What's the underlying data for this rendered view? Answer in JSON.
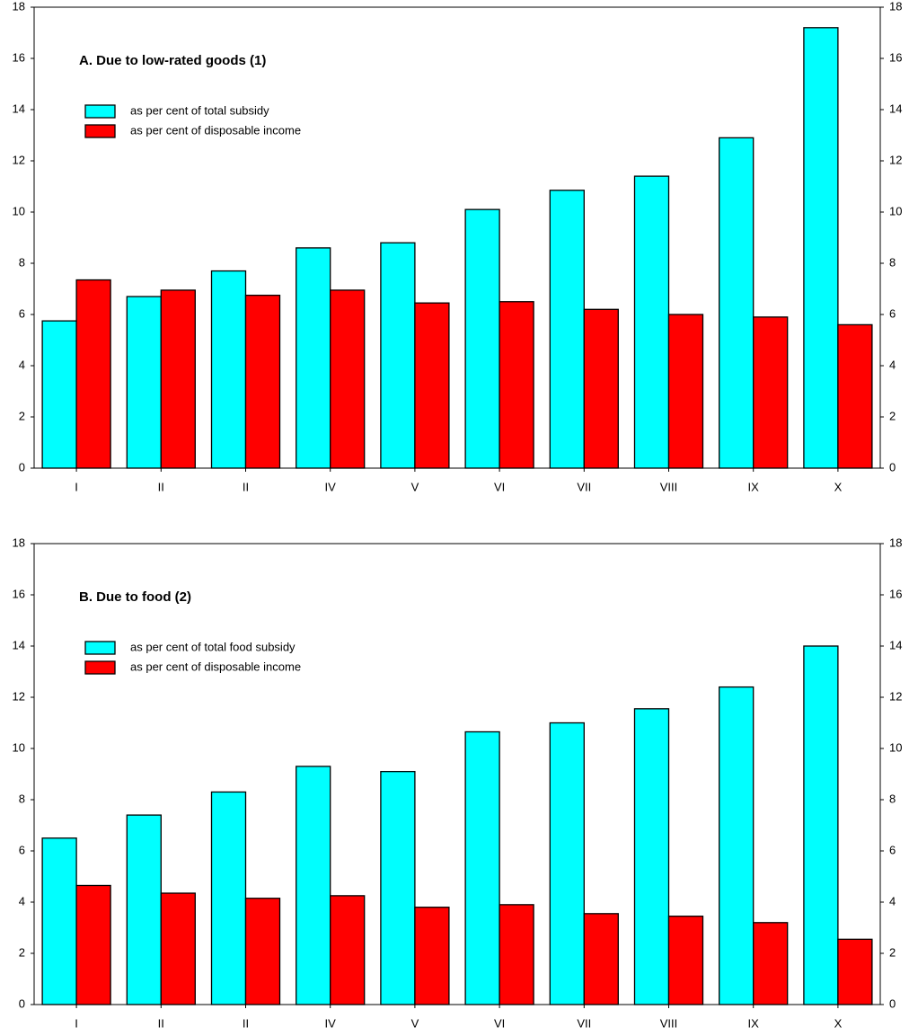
{
  "chart_data": [
    {
      "type": "bar",
      "title": "A. Due to low-rated goods (1)",
      "categories": [
        "I",
        "II",
        "II",
        "IV",
        "V",
        "VI",
        "VII",
        "VIII",
        "IX",
        "X"
      ],
      "series": [
        {
          "name": "as per cent of total subsidy",
          "color": "#00ffff",
          "values": [
            5.75,
            6.7,
            7.7,
            8.6,
            8.8,
            10.1,
            10.85,
            11.4,
            12.9,
            17.2
          ]
        },
        {
          "name": "as per cent of disposable income",
          "color": "#ff0000",
          "values": [
            7.35,
            6.95,
            6.75,
            6.95,
            6.45,
            6.5,
            6.2,
            6.0,
            5.9,
            5.6
          ]
        }
      ],
      "ylim": [
        0,
        18
      ],
      "yticks": [
        0,
        2,
        4,
        6,
        8,
        10,
        12,
        14,
        16,
        18
      ],
      "y2lim": [
        0,
        18
      ],
      "y2ticks": [
        0,
        2,
        4,
        6,
        8,
        10,
        12,
        14,
        16,
        18
      ],
      "grid": false
    },
    {
      "type": "bar",
      "title": "B. Due to food (2)",
      "categories": [
        "I",
        "II",
        "II",
        "IV",
        "V",
        "VI",
        "VII",
        "VIII",
        "IX",
        "X"
      ],
      "series": [
        {
          "name": "as per cent of total food subsidy",
          "color": "#00ffff",
          "values": [
            6.5,
            7.4,
            8.3,
            9.3,
            9.1,
            10.65,
            11.0,
            11.55,
            12.4,
            14.0
          ]
        },
        {
          "name": "as per cent of disposable income",
          "color": "#ff0000",
          "values": [
            4.65,
            4.35,
            4.15,
            4.25,
            3.8,
            3.9,
            3.55,
            3.45,
            3.2,
            2.55
          ]
        }
      ],
      "ylim": [
        0,
        18
      ],
      "yticks": [
        0,
        2,
        4,
        6,
        8,
        10,
        12,
        14,
        16,
        18
      ],
      "y2lim": [
        0,
        18
      ],
      "y2ticks": [
        0,
        2,
        4,
        6,
        8,
        10,
        12,
        14,
        16,
        18
      ],
      "grid": false
    }
  ]
}
